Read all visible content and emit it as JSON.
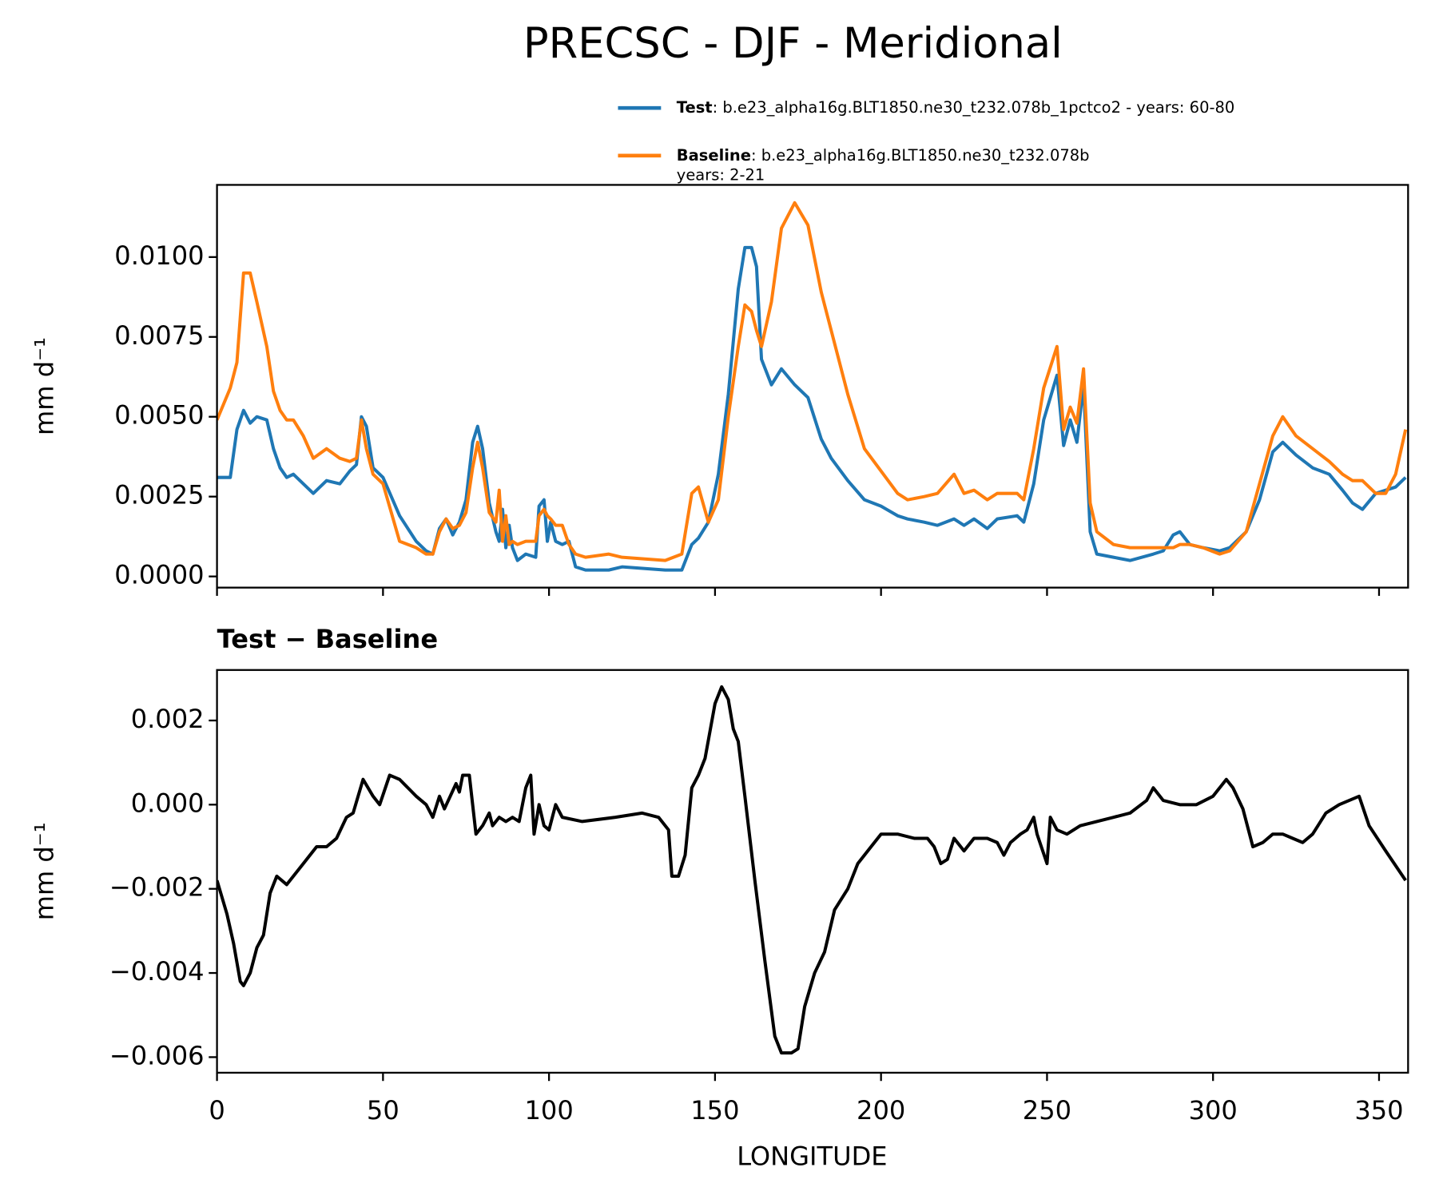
{
  "chart_data": [
    {
      "type": "line",
      "title": "PRECSC - DJF - Meridional",
      "ylabel": "mm d⁻¹",
      "legend": "upper right",
      "xlim": [
        0,
        358.75
      ],
      "xticks": [
        0,
        50,
        100,
        150,
        200,
        250,
        300,
        350
      ],
      "ylim": [
        -0.00035,
        0.01226
      ],
      "yticks": [
        {
          "value": 0,
          "label": "0.0000"
        },
        {
          "value": 0.0025,
          "label": "0.0025"
        },
        {
          "value": 0.005,
          "label": "0.0050"
        },
        {
          "value": 0.0075,
          "label": "0.0075"
        },
        {
          "value": 0.01,
          "label": "0.0100"
        }
      ],
      "x": [
        0,
        4,
        6,
        8,
        10,
        12,
        15,
        17,
        19,
        21,
        23,
        26,
        29,
        33,
        37,
        40,
        42,
        43.5,
        45,
        47,
        50,
        55,
        60,
        63,
        65,
        67,
        69,
        71,
        73,
        75,
        77,
        78.5,
        80,
        82,
        84,
        85,
        86,
        87,
        88,
        89,
        90.5,
        93,
        96,
        97,
        98.5,
        99.5,
        100.5,
        102,
        104,
        106,
        108,
        111,
        118,
        122,
        135,
        140,
        143,
        145,
        148,
        151,
        154,
        157,
        159,
        161,
        162.5,
        164,
        167,
        170,
        174,
        178,
        182,
        185,
        190,
        195,
        200,
        205,
        208,
        213,
        217,
        222,
        225,
        228,
        232,
        235,
        241,
        243,
        246,
        249,
        253,
        255,
        257,
        259,
        261,
        263,
        265,
        270,
        275,
        282,
        285,
        288,
        290,
        293,
        297,
        302,
        305,
        310,
        314,
        318,
        321,
        325,
        330,
        335,
        339,
        342,
        345,
        349,
        352,
        355,
        358
      ],
      "series": [
        {
          "name": "Test",
          "description": [
            ": b.e23_alpha16g.BLT1850.ne30_t232.078b_1pctco2 - years: 60-80"
          ],
          "color": "#1f77b4",
          "values": [
            0.0031,
            0.0031,
            0.0046,
            0.0052,
            0.0048,
            0.005,
            0.0049,
            0.004,
            0.0034,
            0.0031,
            0.0032,
            0.0029,
            0.0026,
            0.003,
            0.0029,
            0.0033,
            0.0035,
            0.005,
            0.0047,
            0.0034,
            0.0031,
            0.0019,
            0.0011,
            0.0008,
            0.0007,
            0.0015,
            0.0018,
            0.0013,
            0.0017,
            0.0024,
            0.0042,
            0.0047,
            0.004,
            0.0023,
            0.0014,
            0.0011,
            0.0021,
            0.0009,
            0.0016,
            0.0009,
            0.0005,
            0.0007,
            0.0006,
            0.0022,
            0.0024,
            0.0011,
            0.0017,
            0.0011,
            0.001,
            0.0011,
            0.0003,
            0.0002,
            0.0002,
            0.0003,
            0.0002,
            0.0002,
            0.001,
            0.0012,
            0.0017,
            0.0032,
            0.0057,
            0.009,
            0.0103,
            0.0103,
            0.0097,
            0.0068,
            0.006,
            0.0065,
            0.006,
            0.0056,
            0.0043,
            0.0037,
            0.003,
            0.0024,
            0.0022,
            0.0019,
            0.0018,
            0.0017,
            0.0016,
            0.0018,
            0.0016,
            0.0018,
            0.0015,
            0.0018,
            0.0019,
            0.0017,
            0.0029,
            0.0049,
            0.0063,
            0.0041,
            0.0049,
            0.0042,
            0.006,
            0.0014,
            0.0007,
            0.0006,
            0.0005,
            0.0007,
            0.0008,
            0.0013,
            0.0014,
            0.001,
            0.0009,
            0.0008,
            0.0009,
            0.0014,
            0.0024,
            0.0039,
            0.0042,
            0.0038,
            0.0034,
            0.0032,
            0.0027,
            0.0023,
            0.0021,
            0.0026,
            0.0027,
            0.0028,
            0.0031
          ]
        },
        {
          "name": "Baseline",
          "description": [
            ": b.e23_alpha16g.BLT1850.ne30_t232.078b",
            "years: 2-21"
          ],
          "color": "#ff7f0e",
          "values": [
            0.0049,
            0.0059,
            0.0067,
            0.0095,
            0.0095,
            0.0086,
            0.0072,
            0.0058,
            0.0052,
            0.0049,
            0.0049,
            0.0044,
            0.0037,
            0.004,
            0.0037,
            0.0036,
            0.0037,
            0.0049,
            0.004,
            0.0032,
            0.0029,
            0.0011,
            0.0009,
            0.0007,
            0.0007,
            0.0014,
            0.0018,
            0.0015,
            0.0016,
            0.002,
            0.0034,
            0.0042,
            0.0034,
            0.002,
            0.0017,
            0.0027,
            0.0011,
            0.0019,
            0.001,
            0.0011,
            0.001,
            0.0011,
            0.0011,
            0.0019,
            0.0021,
            0.0019,
            0.0018,
            0.0016,
            0.0016,
            0.001,
            0.0007,
            0.0006,
            0.0007,
            0.0006,
            0.0005,
            0.0007,
            0.0026,
            0.0028,
            0.0017,
            0.0024,
            0.005,
            0.0072,
            0.0085,
            0.0083,
            0.0077,
            0.0072,
            0.0086,
            0.0109,
            0.0117,
            0.011,
            0.0089,
            0.0077,
            0.0057,
            0.004,
            0.0033,
            0.0026,
            0.0024,
            0.0025,
            0.0026,
            0.0032,
            0.0026,
            0.0027,
            0.0024,
            0.0026,
            0.0026,
            0.0024,
            0.004,
            0.0059,
            0.0072,
            0.0046,
            0.0053,
            0.0048,
            0.0065,
            0.0023,
            0.0014,
            0.001,
            0.0009,
            0.0009,
            0.0009,
            0.0009,
            0.001,
            0.001,
            0.0009,
            0.0007,
            0.0008,
            0.0014,
            0.0029,
            0.0044,
            0.005,
            0.0044,
            0.004,
            0.0036,
            0.0032,
            0.003,
            0.003,
            0.0026,
            0.0026,
            0.0032,
            0.0046
          ]
        }
      ]
    },
    {
      "type": "line",
      "title": "Test − Baseline",
      "ylabel": "mm d⁻¹",
      "xlabel": "LONGITUDE",
      "xlim": [
        0,
        358.75
      ],
      "xticks": [
        0,
        50,
        100,
        150,
        200,
        250,
        300,
        350
      ],
      "ylim": [
        -0.00637,
        0.0032
      ],
      "yticks": [
        {
          "value": -0.006,
          "label": "−0.006"
        },
        {
          "value": -0.004,
          "label": "−0.004"
        },
        {
          "value": -0.002,
          "label": "−0.002"
        },
        {
          "value": 0,
          "label": "0.000"
        },
        0.002
      ],
      "x": [
        0,
        3,
        5,
        7,
        8,
        10,
        12,
        14,
        16,
        18,
        21,
        23,
        26,
        30,
        33,
        36,
        39,
        41,
        44,
        47,
        49,
        52,
        55,
        60,
        63,
        65,
        67,
        68.5,
        72,
        73,
        74,
        76,
        78,
        80,
        82,
        83,
        85,
        87,
        89,
        91,
        93,
        94.5,
        95.5,
        97,
        98.5,
        100,
        102,
        104,
        110,
        120,
        128,
        133,
        136,
        137,
        139,
        141,
        143,
        145,
        147,
        150,
        152,
        154,
        155.5,
        157,
        159,
        162,
        165,
        168,
        170,
        173,
        175,
        177,
        180,
        183,
        186,
        190,
        193,
        197,
        200,
        205,
        210,
        214,
        216,
        218,
        220,
        222,
        225,
        228,
        232,
        235,
        237,
        239,
        242,
        244,
        246,
        247,
        250,
        251,
        253,
        256,
        260,
        265,
        270,
        275,
        280,
        282,
        285,
        290,
        295,
        300,
        304,
        306,
        309,
        312,
        315,
        318,
        321,
        324,
        327,
        330,
        334,
        338,
        341,
        344,
        347,
        352,
        358
      ],
      "series": [
        {
          "name": "Test − Baseline",
          "color": "#000000",
          "values": [
            -0.0018,
            -0.0026,
            -0.0033,
            -0.0042,
            -0.0043,
            -0.004,
            -0.0034,
            -0.0031,
            -0.0021,
            -0.0017,
            -0.0019,
            -0.0017,
            -0.0014,
            -0.001,
            -0.001,
            -0.0008,
            -0.0003,
            -0.0002,
            0.0006,
            0.0002,
            0,
            0.0007,
            0.0006,
            0.0002,
            0,
            -0.0003,
            0.0002,
            -0.0001,
            0.0005,
            0.0003,
            0.0007,
            0.0007,
            -0.0007,
            -0.0005,
            -0.0002,
            -0.0005,
            -0.0003,
            -0.0004,
            -0.0003,
            -0.0004,
            0.0004,
            0.0007,
            -0.0007,
            0,
            -0.0005,
            -0.0006,
            0,
            -0.0003,
            -0.0004,
            -0.0003,
            -0.0002,
            -0.0003,
            -0.0006,
            -0.0017,
            -0.0017,
            -0.0012,
            0.0004,
            0.0007,
            0.0011,
            0.0024,
            0.0028,
            0.0025,
            0.0018,
            0.0015,
            0.0002,
            -0.0018,
            -0.0037,
            -0.0055,
            -0.0059,
            -0.0059,
            -0.0058,
            -0.0048,
            -0.004,
            -0.0035,
            -0.0025,
            -0.002,
            -0.0014,
            -0.001,
            -0.0007,
            -0.0007,
            -0.0008,
            -0.0008,
            -0.001,
            -0.0014,
            -0.0013,
            -0.0008,
            -0.0011,
            -0.0008,
            -0.0008,
            -0.0009,
            -0.0012,
            -0.0009,
            -0.0007,
            -0.0006,
            -0.0003,
            -0.0007,
            -0.0014,
            -0.0003,
            -0.0006,
            -0.0007,
            -0.0005,
            -0.0004,
            -0.0003,
            -0.0002,
            0.0001,
            0.0004,
            0.0001,
            0,
            0,
            0.0002,
            0.0006,
            0.0004,
            -0.0001,
            -0.001,
            -0.0009,
            -0.0007,
            -0.0007,
            -0.0008,
            -0.0009,
            -0.0007,
            -0.0002,
            0,
            0.0001,
            0.0002,
            -0.0005,
            -0.0011,
            -0.0018
          ]
        }
      ]
    }
  ]
}
